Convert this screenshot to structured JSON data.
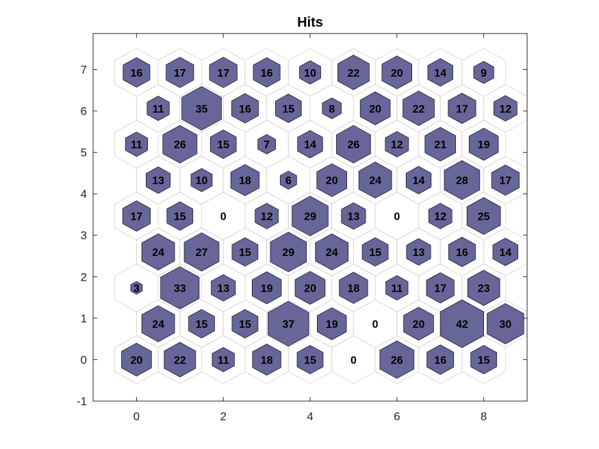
{
  "chart_data": {
    "type": "heatmap",
    "title": "Hits",
    "xlabel": "",
    "ylabel": "",
    "xlim": [
      -1,
      9
    ],
    "ylim": [
      -1,
      7.866
    ],
    "x_ticks": [
      0,
      2,
      4,
      6,
      8
    ],
    "y_ticks": [
      -1,
      0,
      1,
      2,
      3,
      4,
      5,
      6,
      7
    ],
    "grid": false,
    "grid_shape": [
      10,
      10
    ],
    "row_spacing": 0.866,
    "odd_row_offset": 0.5,
    "max_hits": 42,
    "colors": {
      "hex_fill": "#666699",
      "hex_edge": "#1a1a33",
      "cell_outline": "#d9d9d9",
      "axes_edge": "#262626"
    },
    "hits": [
      [
        20,
        22,
        11,
        18,
        15,
        0,
        26,
        16,
        15
      ],
      [
        24,
        15,
        15,
        37,
        19,
        0,
        20,
        42,
        30
      ],
      [
        3,
        33,
        13,
        19,
        20,
        18,
        11,
        17,
        23
      ],
      [
        24,
        27,
        15,
        29,
        24,
        15,
        13,
        16,
        14
      ],
      [
        17,
        15,
        0,
        12,
        29,
        13,
        0,
        12,
        25
      ],
      [
        13,
        10,
        18,
        6,
        20,
        24,
        14,
        28,
        17
      ],
      [
        11,
        26,
        15,
        7,
        14,
        26,
        12,
        21,
        19
      ],
      [
        11,
        35,
        16,
        15,
        8,
        20,
        22,
        17,
        12
      ],
      [
        16,
        17,
        17,
        16,
        10,
        22,
        20,
        14,
        9
      ]
    ]
  }
}
